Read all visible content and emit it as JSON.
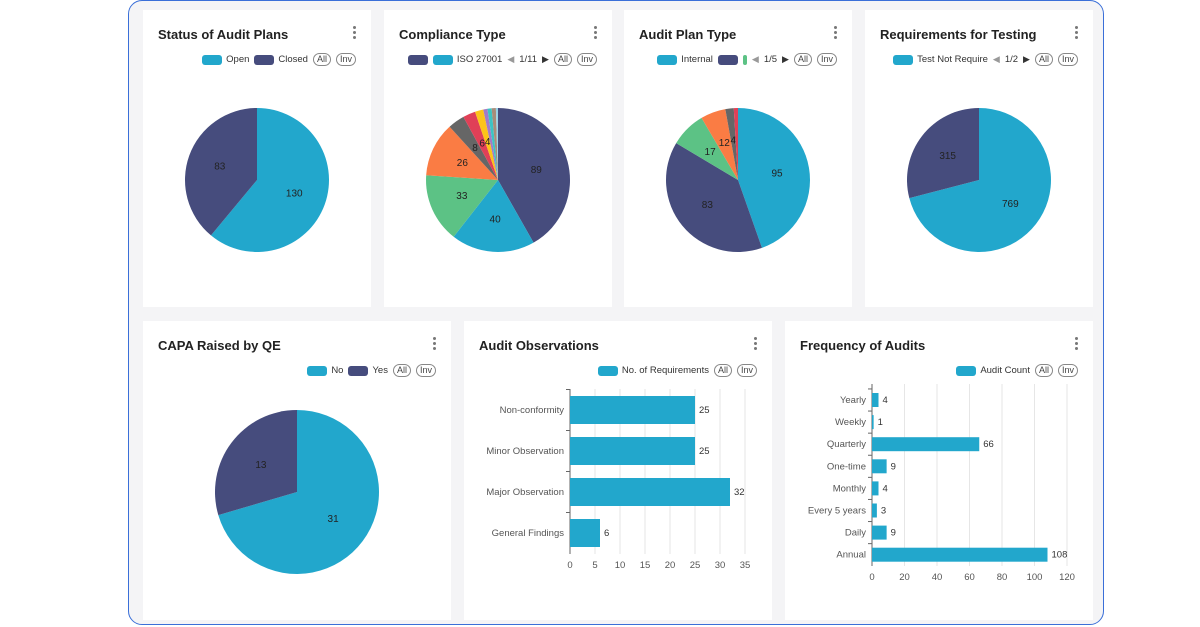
{
  "colors": {
    "teal": "#22a7cc",
    "navy": "#464c7d",
    "green": "#5cc285",
    "orange": "#fa7c44",
    "grey": "#666",
    "red": "#e04057",
    "yellow": "#fcc419",
    "purple": "#a37bc6",
    "cyan": "#3cc4c4",
    "brown": "#a88d7a",
    "light": "#9bd1e6"
  },
  "cards": {
    "status": {
      "title": "Status of Audit Plans",
      "legend": [
        "Open",
        "Closed"
      ],
      "all": "All",
      "inv": "Inv",
      "slices": [
        {
          "name": "Open",
          "value": 130,
          "color": "#22a7cc"
        },
        {
          "name": "Closed",
          "value": 83,
          "color": "#464c7d"
        }
      ]
    },
    "compliance": {
      "title": "Compliance Type",
      "legend": [
        "",
        "ISO 27001"
      ],
      "page": "1/11",
      "all": "All",
      "inv": "Inv",
      "slices": [
        {
          "value": 89,
          "color": "#464c7d"
        },
        {
          "name": "ISO 27001",
          "value": 40,
          "color": "#22a7cc"
        },
        {
          "value": 33,
          "color": "#5cc285"
        },
        {
          "value": 26,
          "color": "#fa7c44"
        },
        {
          "value": 8,
          "color": "#666666"
        },
        {
          "value": 6,
          "color": "#e04057"
        },
        {
          "value": 4,
          "color": "#fcc419"
        },
        {
          "value": 2,
          "color": "#a37bc6",
          "nolabel": true
        },
        {
          "value": 2,
          "color": "#3cc4c4",
          "nolabel": true
        },
        {
          "value": 2,
          "color": "#a88d7a",
          "nolabel": true
        },
        {
          "value": 1,
          "color": "#9bd1e6",
          "nolabel": true
        }
      ]
    },
    "plantype": {
      "title": "Audit Plan Type",
      "legend": [
        "Internal",
        ""
      ],
      "page": "1/5",
      "all": "All",
      "inv": "Inv",
      "slices": [
        {
          "name": "Internal",
          "value": 95,
          "color": "#22a7cc"
        },
        {
          "value": 83,
          "color": "#464c7d"
        },
        {
          "value": 17,
          "color": "#5cc285"
        },
        {
          "value": 12,
          "color": "#fa7c44"
        },
        {
          "value": 4,
          "color": "#666666"
        },
        {
          "value": 2,
          "color": "#e04057",
          "nolabel": true
        }
      ]
    },
    "requirements": {
      "title": "Requirements for Testing",
      "legend": [
        "Test Not Require"
      ],
      "page": "1/2",
      "all": "All",
      "inv": "Inv",
      "slices": [
        {
          "name": "Test Not Require",
          "value": 769,
          "color": "#22a7cc"
        },
        {
          "value": 315,
          "color": "#464c7d"
        }
      ]
    },
    "capa": {
      "title": "CAPA Raised by QE",
      "legend": [
        "No",
        "Yes"
      ],
      "all": "All",
      "inv": "Inv",
      "slices": [
        {
          "name": "No",
          "value": 31,
          "color": "#22a7cc"
        },
        {
          "name": "Yes",
          "value": 13,
          "color": "#464c7d"
        }
      ]
    }
  },
  "chart_data": [
    {
      "type": "bar",
      "orientation": "horizontal",
      "title": "Audit Observations",
      "series": [
        {
          "name": "No. of Requirements",
          "values": [
            25,
            25,
            32,
            6
          ]
        }
      ],
      "categories": [
        "Non-conformity",
        "Minor Observation",
        "Major Observation",
        "General Findings"
      ],
      "xlim": [
        0,
        35
      ],
      "ticks": [
        0,
        5,
        10,
        15,
        20,
        25,
        30,
        35
      ],
      "grid": true,
      "legend": "top-right"
    },
    {
      "type": "bar",
      "orientation": "horizontal",
      "title": "Frequency of Audits",
      "series": [
        {
          "name": "Audit Count",
          "values": [
            4,
            1,
            66,
            9,
            4,
            3,
            9,
            108
          ]
        }
      ],
      "categories": [
        "Yearly",
        "Weekly",
        "Quarterly",
        "One-time",
        "Monthly",
        "Every 5 years",
        "Daily",
        "Annual"
      ],
      "xlim": [
        0,
        120
      ],
      "ticks": [
        0,
        20,
        40,
        60,
        80,
        100,
        120
      ],
      "grid": true,
      "legend": "top-right"
    }
  ],
  "bar_legend": {
    "all": "All",
    "inv": "Inv"
  }
}
